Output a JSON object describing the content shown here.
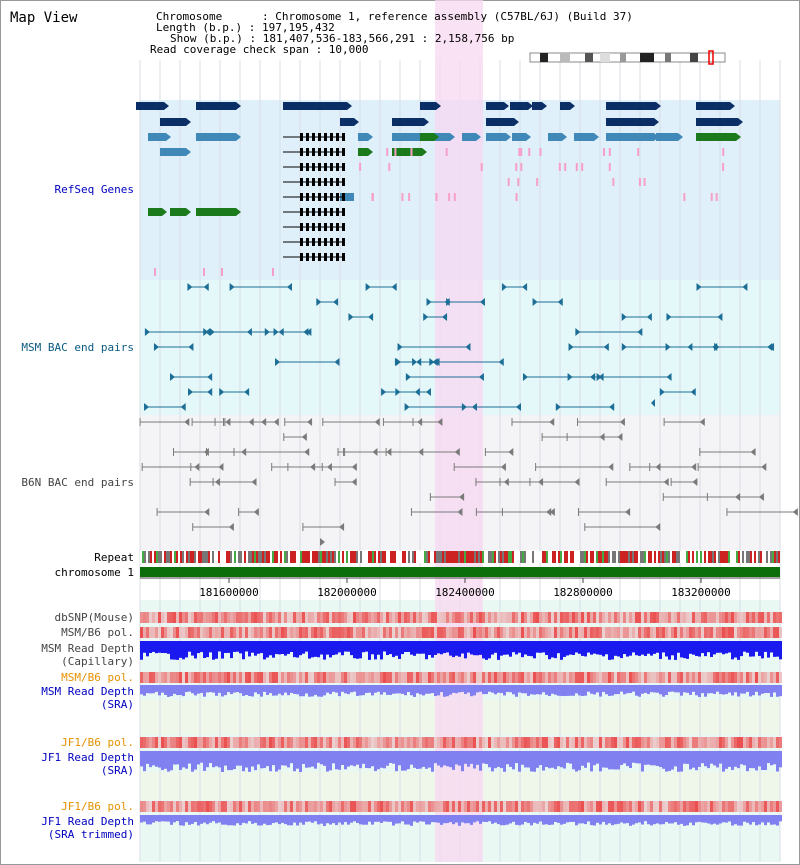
{
  "header": {
    "title": "Map View",
    "chromosome_label": "Chromosome      : Chromosome 1, reference assembly (C57BL/6J) (Build 37)",
    "length_label": "Length (b.p.) : 197,195,432",
    "show_label": "Show (b.p.) : 181,407,536-183,566,291 : 2,158,756 bp",
    "coverage_label": "Read coverage check span : 10,000"
  },
  "tracks": {
    "refseq": "RefSeq Genes",
    "msm_bac": "MSM BAC end pairs",
    "b6n_bac": "B6N BAC end pairs",
    "repeat": "Repeat",
    "chromosome": "chromosome 1",
    "dbsnp": "dbSNP(Mouse)",
    "msm_pol": "MSM/B6 pol.",
    "msm_depth_cap_1": "MSM Read Depth",
    "msm_depth_cap_2": "(Capillary)",
    "msm_pol2": "MSM/B6 pol.",
    "msm_depth_sra_1": "MSM Read Depth",
    "msm_depth_sra_2": "(SRA)",
    "jf1_pol": "JF1/B6 pol.",
    "jf1_depth_1": "JF1 Read Depth",
    "jf1_depth_2": "(SRA)",
    "jf1_pol2": "JF1/B6 pol.",
    "jf1_trim_1": "JF1 Read Depth",
    "jf1_trim_2": "(SRA trimmed)"
  },
  "axis": {
    "ticks": [
      "181600000",
      "182000000",
      "182400000",
      "182800000",
      "183200000"
    ]
  },
  "colors": {
    "refseq_bg": "#dff0fa",
    "bac_bg": "#e4f7f9",
    "b6n_bg": "#f4f4f6",
    "highlight": "#f8d8f2",
    "gene_dark": "#0c2e66",
    "gene_mid": "#3f88b8",
    "gene_green": "#1b7a1b",
    "bac_line": "#1c6e96",
    "b6n_line": "#7a7a7a",
    "chrom_green": "#0b6e0b",
    "depth_blue": "#1a1af0",
    "depth_light": "#8080f0",
    "pol_red": "#ee3333"
  }
}
